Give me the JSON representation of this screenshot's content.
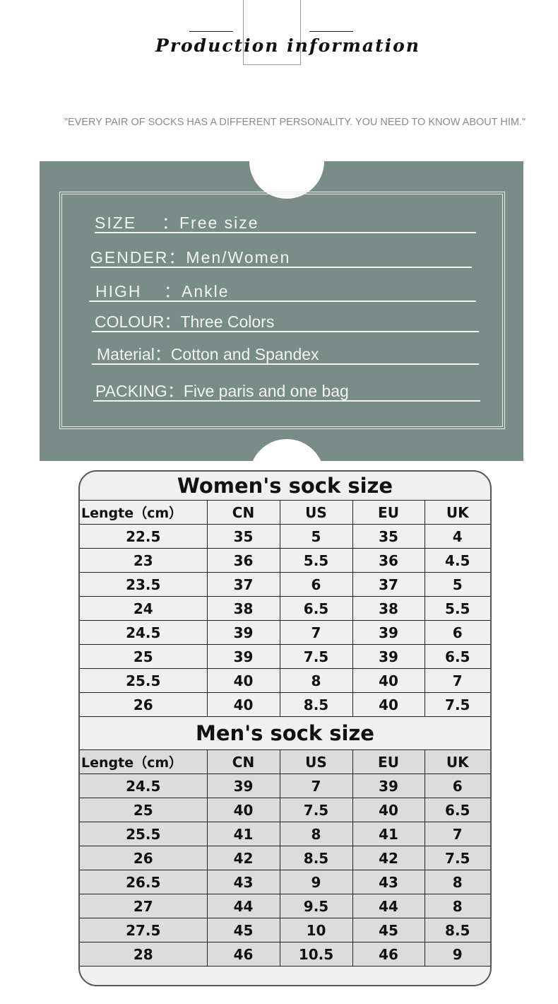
{
  "header": {
    "title": "Production information",
    "quote": "\"EVERY PAIR OF SOCKS HAS A DIFFERENT PERSONALITY. YOU NEED TO KNOW ABOUT HIM.\""
  },
  "colors": {
    "panel": "#798c87",
    "men_rows": "#dcdcdc",
    "table_bg": "#f0f0f0"
  },
  "info": [
    {
      "label": "SIZE",
      "sep": "：",
      "value": "Free size"
    },
    {
      "label": "GENDER",
      "sep": "：",
      "value": "Men/Women"
    },
    {
      "label": "HIGH",
      "sep": "：",
      "value": "Ankle"
    },
    {
      "label": "COLOUR",
      "sep": "：",
      "value": "Three Colors"
    },
    {
      "label": "Material",
      "sep": "：",
      "value": "Cotton and Spandex"
    },
    {
      "label": "PACKING",
      "sep": "：",
      "value": "Five paris and one bag"
    }
  ],
  "tables": [
    {
      "title": "Women's sock size",
      "columns": [
        "Lengte（cm）",
        "CN",
        "US",
        "EU",
        "UK"
      ],
      "rows": [
        [
          "22.5",
          "35",
          "5",
          "35",
          "4"
        ],
        [
          "23",
          "36",
          "5.5",
          "36",
          "4.5"
        ],
        [
          "23.5",
          "37",
          "6",
          "37",
          "5"
        ],
        [
          "24",
          "38",
          "6.5",
          "38",
          "5.5"
        ],
        [
          "24.5",
          "39",
          "7",
          "39",
          "6"
        ],
        [
          "25",
          "39",
          "7.5",
          "39",
          "6.5"
        ],
        [
          "25.5",
          "40",
          "8",
          "40",
          "7"
        ],
        [
          "26",
          "40",
          "8.5",
          "40",
          "7.5"
        ]
      ]
    },
    {
      "title": "Men's sock size",
      "columns": [
        "Lengte（cm）",
        "CN",
        "US",
        "EU",
        "UK"
      ],
      "rows": [
        [
          "24.5",
          "39",
          "7",
          "39",
          "6"
        ],
        [
          "25",
          "40",
          "7.5",
          "40",
          "6.5"
        ],
        [
          "25.5",
          "41",
          "8",
          "41",
          "7"
        ],
        [
          "26",
          "42",
          "8.5",
          "42",
          "7.5"
        ],
        [
          "26.5",
          "43",
          "9",
          "43",
          "8"
        ],
        [
          "27",
          "44",
          "9.5",
          "44",
          "8"
        ],
        [
          "27.5",
          "45",
          "10",
          "45",
          "8.5"
        ],
        [
          "28",
          "46",
          "10.5",
          "46",
          "9"
        ]
      ]
    }
  ]
}
